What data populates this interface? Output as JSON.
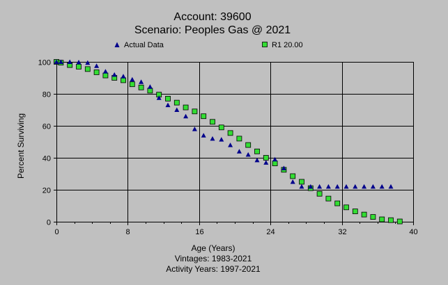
{
  "chart_data": {
    "type": "scatter",
    "title_lines": [
      "Account: 39600",
      "Scenario: Peoples Gas @ 2021"
    ],
    "xlabel": "Age (Years)",
    "ylabel": "Percent Surviving",
    "footer_lines": [
      "Vintages: 1983-2021",
      "Activity Years: 1997-2021"
    ],
    "xlim": [
      0,
      40
    ],
    "ylim": [
      0,
      100
    ],
    "xticks": [
      0,
      8,
      16,
      24,
      32,
      40
    ],
    "yticks": [
      0,
      20,
      40,
      60,
      80,
      100
    ],
    "grid": "vertical-major-and-horizontal",
    "legend_position": "top",
    "colors": {
      "background": "#c0c0c0",
      "actual": "#00008b",
      "curve_fill": "#33dd33",
      "curve_stroke": "#000000"
    },
    "series": [
      {
        "name": "Actual Data",
        "marker": "triangle",
        "x": [
          0,
          0.5,
          1.5,
          2.5,
          3.5,
          4.5,
          5.5,
          6.5,
          7.5,
          8.5,
          9.5,
          10.5,
          11.5,
          12.5,
          13.5,
          14.5,
          15.5,
          16.5,
          17.5,
          18.5,
          19.5,
          20.5,
          21.5,
          22.5,
          23.5,
          24.5,
          25.5,
          26.5,
          27.5,
          28.5,
          29.5,
          30.5,
          31.5,
          32.5,
          33.5,
          34.5,
          35.5,
          36.5,
          37.5
        ],
        "y": [
          100,
          100,
          100,
          99.8,
          99.5,
          97.5,
          94,
          92,
          91,
          89,
          87.5,
          84.5,
          77.5,
          73,
          70,
          66,
          58,
          54,
          52,
          51.5,
          48,
          44,
          42,
          38.5,
          37,
          39,
          33.5,
          25,
          22,
          22,
          22,
          22,
          22,
          22,
          22,
          22,
          22,
          22,
          22
        ]
      },
      {
        "name": "R1 20.00",
        "marker": "square",
        "x": [
          0,
          0.5,
          1.5,
          2.5,
          3.5,
          4.5,
          5.5,
          6.5,
          7.5,
          8.5,
          9.5,
          10.5,
          11.5,
          12.5,
          13.5,
          14.5,
          15.5,
          16.5,
          17.5,
          18.5,
          19.5,
          20.5,
          21.5,
          22.5,
          23.5,
          24.5,
          25.5,
          26.5,
          27.5,
          28.5,
          29.5,
          30.5,
          31.5,
          32.5,
          33.5,
          34.5,
          35.5,
          36.5,
          37.5,
          38.5
        ],
        "y": [
          100,
          99.5,
          98,
          97,
          95.5,
          93.5,
          91.5,
          90,
          88.5,
          86,
          84,
          82,
          79.5,
          77,
          74.5,
          71.5,
          69,
          66,
          62.5,
          59,
          55.5,
          52,
          48,
          44,
          40,
          36.5,
          32.5,
          28.5,
          25,
          21,
          17.5,
          14.5,
          11.5,
          9,
          6.5,
          4.5,
          3,
          1.5,
          1,
          0.2
        ]
      }
    ]
  }
}
